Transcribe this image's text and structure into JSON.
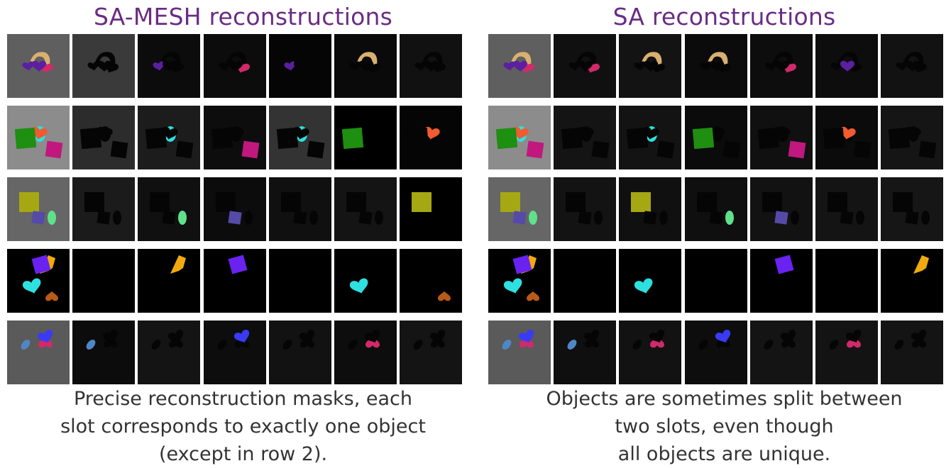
{
  "panels": [
    {
      "title": "SA-MESH reconstructions",
      "caption_lines": [
        "Precise reconstruction masks, each",
        "slot corresponds to exactly one object",
        "(except in row 2)."
      ]
    },
    {
      "title": "SA reconstructions",
      "caption_lines": [
        "Objects are sometimes split between",
        "two slots, even though",
        "all objects are unique."
      ]
    }
  ],
  "colors": {
    "title": "#6a2c84",
    "caption": "#333333",
    "purple_heart": "#5b1fa0",
    "tan": "#d8b070",
    "magenta": "#d02a6a",
    "green": "#1e8f10",
    "orange": "#f25a30",
    "pink_square": "#c0187f",
    "cyan": "#2ee0e0",
    "olive": "#a5a812",
    "slate_blue": "#554aa8",
    "mint": "#5fe08a",
    "violet": "#6a22f0",
    "yellow": "#f0aa10",
    "brown": "#b85a18",
    "blue": "#3a3af5",
    "steel_blue": "#4f86c6"
  }
}
